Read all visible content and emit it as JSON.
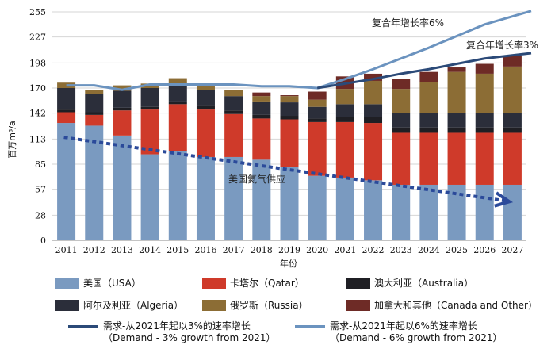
{
  "chart_data": {
    "type": "bar",
    "stacked": true,
    "ylabel": "百万m³/a",
    "xlabel": "年份",
    "ylim": [
      0,
      255
    ],
    "yticks": [
      0,
      28,
      57,
      85,
      113,
      142,
      170,
      198,
      227,
      255
    ],
    "grid": true,
    "categories": [
      "2011",
      "2012",
      "2013",
      "2014",
      "2015",
      "2016",
      "2017",
      "2018",
      "2019",
      "2020",
      "2021",
      "2022",
      "2023",
      "2024",
      "2025",
      "2026",
      "2027"
    ],
    "series": [
      {
        "name": "美国（USA）",
        "color": "#7a9ac0",
        "values": [
          131,
          128,
          117,
          96,
          100,
          93,
          93,
          90,
          82,
          72,
          70,
          67,
          62,
          62,
          62,
          62,
          62
        ]
      },
      {
        "name": "卡塔尔（Qatar）",
        "color": "#cf3a2a",
        "values": [
          12,
          12,
          28,
          50,
          52,
          53,
          48,
          46,
          53,
          60,
          62,
          64,
          58,
          58,
          58,
          58,
          58
        ]
      },
      {
        "name": "澳大利亚（Australia）",
        "color": "#1f1f24",
        "values": [
          3,
          3,
          3,
          3,
          3,
          4,
          4,
          4,
          4,
          4,
          6,
          7,
          6,
          6,
          6,
          6,
          6
        ]
      },
      {
        "name": "阿尔及利亚（Algeria）",
        "color": "#2b2e3a",
        "values": [
          24,
          20,
          19,
          21,
          20,
          18,
          16,
          15,
          15,
          13,
          14,
          14,
          16,
          16,
          16,
          16,
          16
        ]
      },
      {
        "name": "俄罗斯（Russia）",
        "color": "#8c6d35",
        "values": [
          6,
          5,
          6,
          5,
          6,
          5,
          7,
          6,
          7,
          8,
          17,
          26,
          27,
          35,
          46,
          44,
          52
        ]
      },
      {
        "name": "加拿大和其他（Canada and Other）",
        "color": "#6e2b26",
        "values": [
          0,
          0,
          0,
          0,
          0,
          1,
          0,
          4,
          1,
          9,
          14,
          8,
          11,
          11,
          5,
          11,
          12
        ]
      }
    ],
    "lines": [
      {
        "name": "需求-从2021年起以3%的速率增长",
        "name_en": "（Demand - 3% growth from 2021）",
        "color": "#2b4a78",
        "x": [
          "2020",
          "2021",
          "2022",
          "2023",
          "2024",
          "2025",
          "2026",
          "2027"
        ],
        "values": [
          170,
          175,
          180,
          186,
          191,
          197,
          203,
          209
        ]
      },
      {
        "name": "需求-从2021年起以6%的速率增长",
        "name_en": "（Demand - 6% growth from 2021）",
        "color": "#6b93bf",
        "x": [
          "2011",
          "2012",
          "2013",
          "2014",
          "2015",
          "2016",
          "2017",
          "2018",
          "2019",
          "2020",
          "2021",
          "2022",
          "2023",
          "2024",
          "2025",
          "2026",
          "2027"
        ],
        "values": [
          173,
          173,
          168,
          174,
          174,
          174,
          174,
          172,
          172,
          170,
          180,
          191,
          203,
          215,
          228,
          241,
          256
        ]
      }
    ],
    "trend": {
      "name": "美国氦气供应",
      "color": "#2b4a9a",
      "x": [
        "2011",
        "2027"
      ],
      "values": [
        115,
        44
      ]
    },
    "annotations": [
      "复合年增长率6%",
      "复合年增长率3%",
      "美国氦气供应"
    ]
  },
  "legend": {
    "items": [
      {
        "label": "美国（USA）",
        "color": "#7a9ac0"
      },
      {
        "label": "卡塔尔（Qatar）",
        "color": "#cf3a2a"
      },
      {
        "label": "澳大利亚（Australia）",
        "color": "#1f1f24"
      },
      {
        "label": "阿尔及利亚（Algeria）",
        "color": "#2b2e3a"
      },
      {
        "label": "俄罗斯（Russia）",
        "color": "#8c6d35"
      },
      {
        "label": "加拿大和其他（Canada and Other）",
        "color": "#6e2b26"
      }
    ],
    "lines": [
      {
        "label": "需求-从2021年起以3%的速率增长",
        "sub": "（Demand - 3% growth from 2021）",
        "color": "#2b4a78"
      },
      {
        "label": "需求-从2021年起以6%的速率增长",
        "sub": "（Demand - 6% growth from 2021）",
        "color": "#6b93bf"
      }
    ]
  }
}
